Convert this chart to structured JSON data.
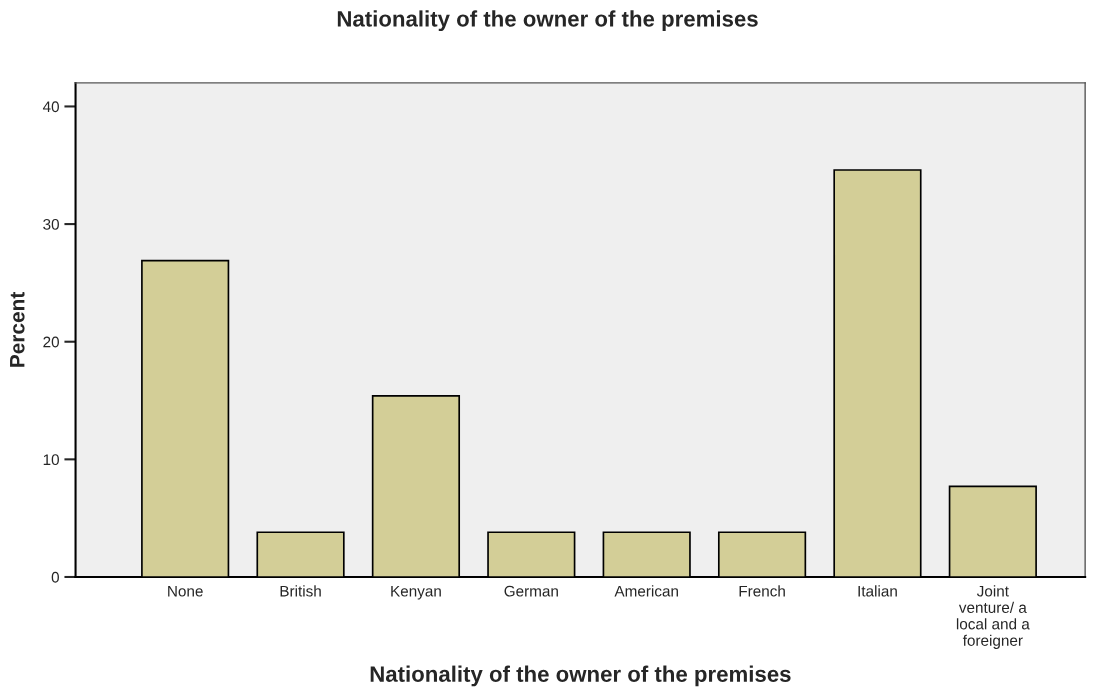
{
  "chart_data": {
    "type": "bar",
    "title": "Nationality of the owner of the premises",
    "xlabel": "Nationality of the owner of the premises",
    "ylabel": "Percent",
    "categories": [
      "None",
      "British",
      "Kenyan",
      "German",
      "American",
      "French",
      "Italian",
      "Joint\nventure/ a\nlocal and a\nforeigner"
    ],
    "values": [
      26.9,
      3.8,
      15.4,
      3.8,
      3.8,
      3.8,
      34.6,
      7.7
    ],
    "color": "#d3ce97",
    "ylim": [
      0,
      42
    ],
    "yticks": [
      0,
      10,
      20,
      30,
      40
    ],
    "grid": false,
    "legend": false
  }
}
